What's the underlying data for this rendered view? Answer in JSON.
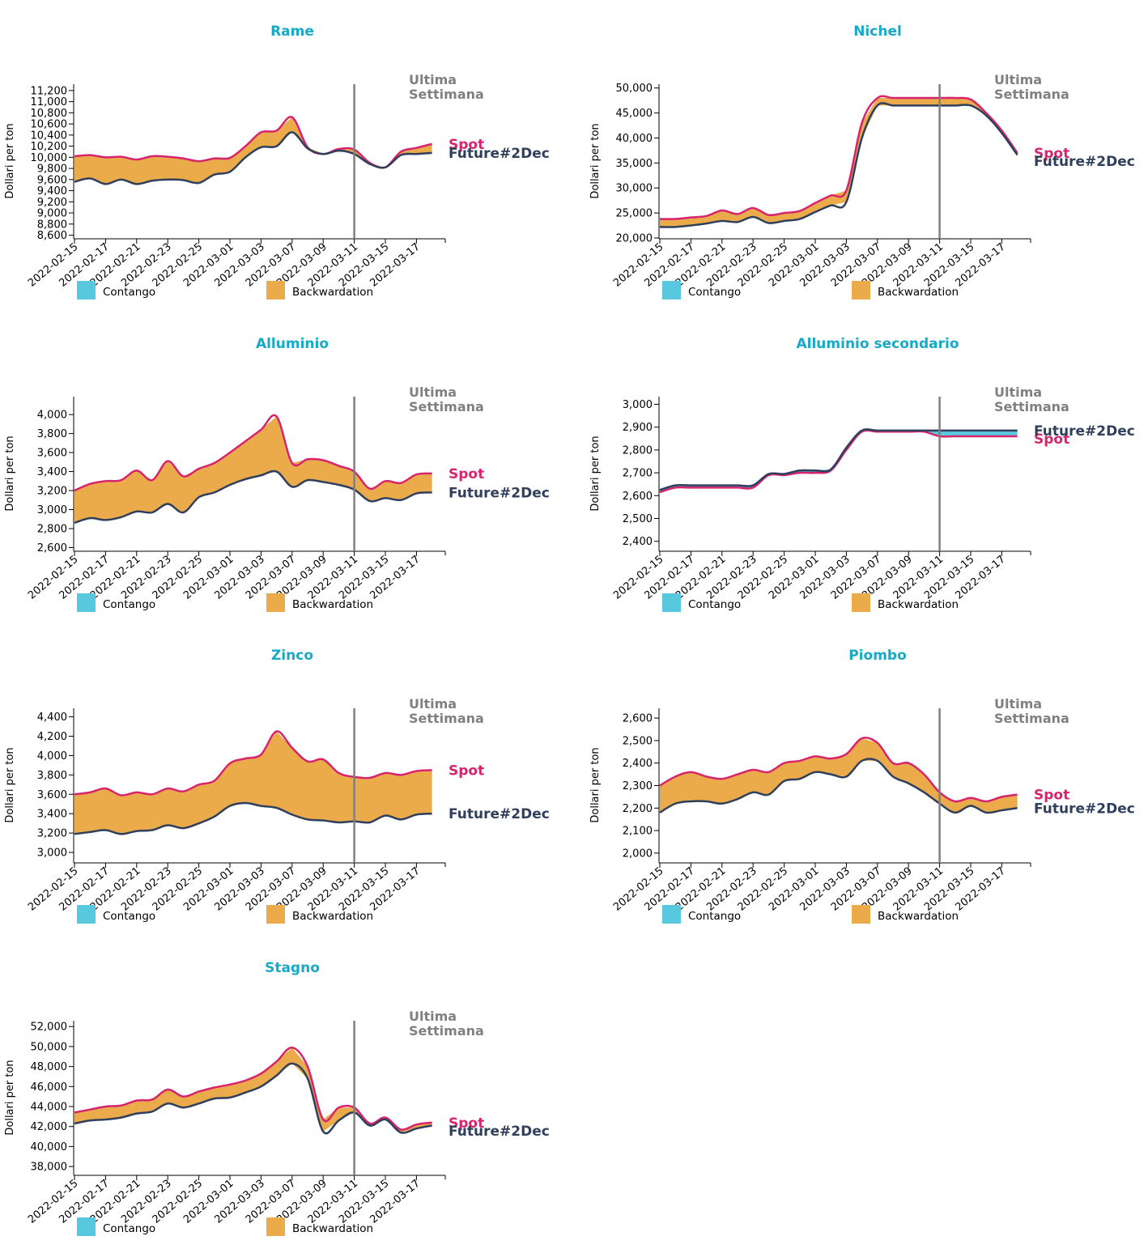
{
  "colors": {
    "title": "#17a9c6",
    "spot": "#d6246e",
    "future": "#2f3f5c",
    "contango": "#58c8de",
    "backwardation": "#ebab4a",
    "last_week_line": "#808080",
    "axis": "#000000"
  },
  "labels": {
    "ylabel": "Dollari per ton",
    "last_week": [
      "Ultima",
      "Settimana"
    ],
    "spot": "Spot",
    "future": "Future#2Dec",
    "legend_contango": "Contango",
    "legend_backwardation": "Backwardation"
  },
  "x_dates": [
    "2022-02-15",
    "2022-02-16",
    "2022-02-17",
    "2022-02-18",
    "2022-02-21",
    "2022-02-22",
    "2022-02-23",
    "2022-02-24",
    "2022-02-25",
    "2022-02-28",
    "2022-03-01",
    "2022-03-02",
    "2022-03-03",
    "2022-03-04",
    "2022-03-07",
    "2022-03-08",
    "2022-03-09",
    "2022-03-10",
    "2022-03-11",
    "2022-03-14",
    "2022-03-15",
    "2022-03-16",
    "2022-03-17",
    "2022-03-18"
  ],
  "x_tick_labels": [
    "2022-02-15",
    "2022-02-17",
    "2022-02-21",
    "2022-02-23",
    "2022-02-25",
    "2022-03-01",
    "2022-03-03",
    "2022-03-07",
    "2022-03-09",
    "2022-03-11",
    "2022-03-15",
    "2022-03-17"
  ],
  "last_week_date": "2022-03-11",
  "chart_data": [
    {
      "type": "area",
      "title": "Rame",
      "ylabel": "Dollari per ton",
      "ylim": [
        8550,
        11300
      ],
      "yticks": [
        "8,600",
        "8,800",
        "9,000",
        "9,200",
        "9,400",
        "9,600",
        "9,800",
        "10,000",
        "10,200",
        "10,400",
        "10,600",
        "10,800",
        "11,000",
        "11,200"
      ],
      "series": [
        {
          "name": "Spot",
          "values": [
            10020,
            10040,
            10000,
            10010,
            9960,
            10020,
            10010,
            9980,
            9930,
            9980,
            9990,
            10200,
            10450,
            10480,
            10720,
            10180,
            10060,
            10150,
            10140,
            9900,
            9820,
            10100,
            10170,
            10240
          ]
        },
        {
          "name": "Future#2Dec",
          "values": [
            9560,
            9620,
            9520,
            9600,
            9520,
            9580,
            9600,
            9590,
            9540,
            9690,
            9740,
            10000,
            10180,
            10200,
            10450,
            10160,
            10060,
            10120,
            10060,
            9880,
            9820,
            10040,
            10060,
            10080
          ]
        }
      ]
    },
    {
      "type": "area",
      "title": "Nichel",
      "ylabel": "Dollari per ton",
      "ylim": [
        20000,
        50600
      ],
      "yticks": [
        "20,000",
        "25,000",
        "30,000",
        "35,000",
        "40,000",
        "45,000",
        "50,000"
      ],
      "series": [
        {
          "name": "Spot",
          "values": [
            23800,
            23800,
            24100,
            24400,
            25500,
            24800,
            26000,
            24600,
            25000,
            25400,
            27000,
            28500,
            29500,
            43000,
            48000,
            48000,
            48000,
            48000,
            48000,
            48000,
            47700,
            45000,
            41500,
            37000
          ]
        },
        {
          "name": "Future#2Dec",
          "values": [
            22200,
            22200,
            22500,
            22900,
            23400,
            23200,
            24200,
            23000,
            23400,
            23800,
            25200,
            26500,
            27200,
            40000,
            46500,
            46500,
            46500,
            46500,
            46500,
            46500,
            46500,
            44500,
            41000,
            36600
          ]
        }
      ]
    },
    {
      "type": "area",
      "title": "Alluminio",
      "ylabel": "Dollari per ton",
      "ylim": [
        2570,
        4180
      ],
      "yticks": [
        "2,600",
        "2,800",
        "3,000",
        "3,200",
        "3,400",
        "3,600",
        "3,800",
        "4,000"
      ],
      "series": [
        {
          "name": "Spot",
          "values": [
            3200,
            3270,
            3300,
            3310,
            3410,
            3310,
            3510,
            3350,
            3430,
            3490,
            3600,
            3720,
            3840,
            3980,
            3490,
            3530,
            3520,
            3460,
            3400,
            3220,
            3300,
            3280,
            3370,
            3380
          ]
        },
        {
          "name": "Future#2Dec",
          "values": [
            2860,
            2910,
            2890,
            2920,
            2980,
            2970,
            3060,
            2970,
            3130,
            3180,
            3260,
            3320,
            3360,
            3400,
            3240,
            3310,
            3290,
            3260,
            3210,
            3090,
            3120,
            3100,
            3170,
            3180
          ]
        }
      ]
    },
    {
      "type": "area",
      "title": "Alluminio secondario",
      "ylabel": "Dollari per ton",
      "ylim": [
        2360,
        3030
      ],
      "yticks": [
        "2,400",
        "2,500",
        "2,600",
        "2,700",
        "2,800",
        "2,900",
        "3,000"
      ],
      "series": [
        {
          "name": "Spot",
          "values": [
            2615,
            2635,
            2635,
            2635,
            2635,
            2635,
            2635,
            2690,
            2690,
            2700,
            2700,
            2710,
            2800,
            2880,
            2880,
            2880,
            2880,
            2880,
            2860,
            2860,
            2860,
            2860,
            2860,
            2860
          ]
        },
        {
          "name": "Future#2Dec",
          "values": [
            2625,
            2645,
            2645,
            2645,
            2645,
            2645,
            2645,
            2695,
            2695,
            2710,
            2710,
            2715,
            2810,
            2885,
            2885,
            2885,
            2885,
            2885,
            2885,
            2885,
            2885,
            2885,
            2885,
            2885
          ]
        }
      ]
    },
    {
      "type": "area",
      "title": "Zinco",
      "ylabel": "Dollari per ton",
      "ylim": [
        2900,
        4480
      ],
      "yticks": [
        "3,000",
        "3,200",
        "3,400",
        "3,600",
        "3,800",
        "4,000",
        "4,200",
        "4,400"
      ],
      "series": [
        {
          "name": "Spot",
          "values": [
            3600,
            3620,
            3660,
            3590,
            3620,
            3600,
            3660,
            3630,
            3700,
            3740,
            3920,
            3970,
            4010,
            4250,
            4080,
            3940,
            3960,
            3820,
            3780,
            3770,
            3820,
            3800,
            3840,
            3850
          ]
        },
        {
          "name": "Future#2Dec",
          "values": [
            3190,
            3210,
            3230,
            3190,
            3220,
            3230,
            3280,
            3250,
            3300,
            3370,
            3480,
            3510,
            3480,
            3460,
            3390,
            3340,
            3330,
            3310,
            3320,
            3310,
            3380,
            3340,
            3390,
            3400
          ]
        }
      ]
    },
    {
      "type": "area",
      "title": "Piombo",
      "ylabel": "Dollari per ton",
      "ylim": [
        1960,
        2640
      ],
      "yticks": [
        "2,000",
        "2,100",
        "2,200",
        "2,300",
        "2,400",
        "2,500",
        "2,600"
      ],
      "series": [
        {
          "name": "Spot",
          "values": [
            2300,
            2340,
            2360,
            2340,
            2330,
            2350,
            2370,
            2360,
            2400,
            2410,
            2430,
            2420,
            2440,
            2510,
            2490,
            2400,
            2400,
            2350,
            2270,
            2230,
            2245,
            2230,
            2250,
            2260
          ]
        },
        {
          "name": "Future#2Dec",
          "values": [
            2180,
            2220,
            2230,
            2230,
            2220,
            2240,
            2270,
            2260,
            2320,
            2330,
            2360,
            2350,
            2340,
            2410,
            2410,
            2340,
            2310,
            2270,
            2220,
            2180,
            2210,
            2180,
            2190,
            2200
          ]
        }
      ]
    },
    {
      "type": "area",
      "title": "Stagno",
      "ylabel": "Dollari per ton",
      "ylim": [
        37200,
        52500
      ],
      "yticks": [
        "38,000",
        "40,000",
        "42,000",
        "44,000",
        "46,000",
        "48,000",
        "50,000",
        "52,000"
      ],
      "series": [
        {
          "name": "Spot",
          "values": [
            43400,
            43700,
            44000,
            44100,
            44600,
            44700,
            45700,
            45000,
            45500,
            45900,
            46200,
            46600,
            47300,
            48500,
            49900,
            48000,
            42700,
            43900,
            43900,
            42300,
            42900,
            41700,
            42200,
            42400
          ]
        },
        {
          "name": "Future#2Dec",
          "values": [
            42300,
            42600,
            42700,
            42900,
            43300,
            43500,
            44300,
            43900,
            44300,
            44800,
            44900,
            45400,
            46000,
            47100,
            48300,
            46800,
            41500,
            42600,
            43400,
            42100,
            42700,
            41400,
            41800,
            42100
          ]
        }
      ]
    }
  ]
}
